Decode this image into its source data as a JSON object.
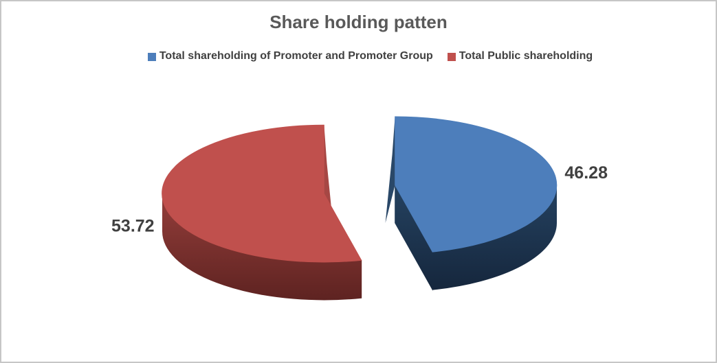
{
  "frame": {
    "background": "#FFFFFF",
    "border_color": "#C6C6C6"
  },
  "chart_data": {
    "type": "pie",
    "style": "3d-exploded-pie",
    "title": "Share holding patten",
    "title_color": "#595959",
    "data_label_color": "#404040",
    "legend_text_color": "#404040",
    "legend_position": "top",
    "direction": "clockwise",
    "start_angle_deg": 0,
    "slices": [
      {
        "label": "Total shareholding of Promoter and Promoter Group",
        "value": 46.28,
        "data_label": "46.28",
        "color": "#4D7EBB",
        "side_gradient": [
          "#2E4F73",
          "#223D5A",
          "#15263C"
        ],
        "edge_sliver_color": "#2A4868"
      },
      {
        "label": "Total Public shareholding",
        "value": 53.72,
        "data_label": "53.72",
        "color": "#C0504D",
        "side_gradient": [
          "#A84A47",
          "#8B3936",
          "#5E2321"
        ],
        "edge_sliver_color": "#A64744"
      }
    ]
  }
}
